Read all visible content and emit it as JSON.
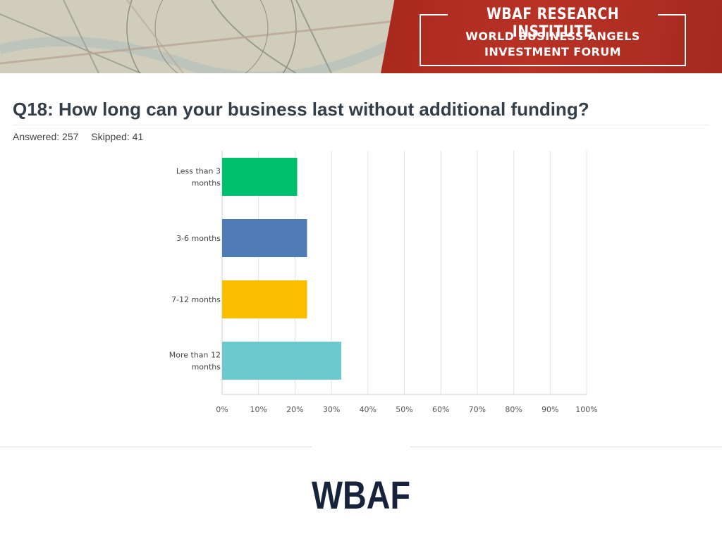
{
  "banner": {
    "institute": "WBAF RESEARCH INSTITUTE",
    "forum_line1": "WORLD BUSINESS ANGELS",
    "forum_line2": "INVESTMENT FORUM",
    "accent_color": "#b02f22"
  },
  "survey": {
    "question": "Q18: How long can your business last without additional funding?",
    "answered": "Answered: 257",
    "skipped": "Skipped: 41"
  },
  "chart_data": {
    "type": "bar",
    "orientation": "horizontal",
    "categories": [
      [
        "Less than 3",
        "months"
      ],
      [
        "3-6 months"
      ],
      [
        "7-12 months"
      ],
      [
        "More than 12",
        "months"
      ]
    ],
    "values": [
      20.6,
      23.3,
      23.3,
      32.7
    ],
    "colors": [
      "#00bf6f",
      "#507cb6",
      "#f9be00",
      "#6bc8cd"
    ],
    "xlim": [
      0,
      100
    ],
    "xticks": [
      "0%",
      "10%",
      "20%",
      "30%",
      "40%",
      "50%",
      "60%",
      "70%",
      "80%",
      "90%",
      "100%"
    ],
    "grid": true
  },
  "footer": {
    "logo_text": "WBAF",
    "logo_color": "#16233b"
  }
}
